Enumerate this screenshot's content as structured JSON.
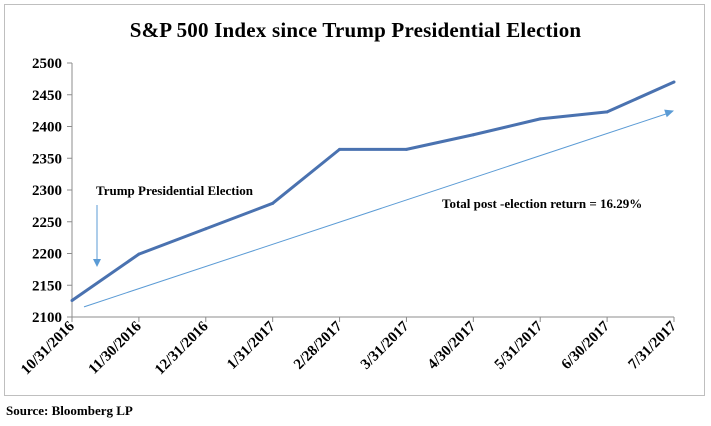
{
  "chart_data": {
    "type": "line",
    "title": "S&P 500 Index since Trump Presidential Election",
    "xlabel": "",
    "ylabel": "",
    "categories": [
      "10/31/2016",
      "11/30/2016",
      "12/31/2016",
      "1/31/2017",
      "2/28/2017",
      "3/31/2017",
      "4/30/2017",
      "5/31/2017",
      "6/30/2017",
      "7/31/2017"
    ],
    "series": [
      {
        "values": [
          2126,
          2199,
          2239,
          2279,
          2364,
          2364,
          2387,
          2412,
          2423,
          2470
        ],
        "color": "#4a72b0"
      }
    ],
    "trend_line": {
      "from": [
        0,
        2116
      ],
      "to": [
        9,
        2425
      ],
      "color": "#5b9bd5"
    },
    "ylim": [
      2100,
      2500
    ],
    "yticks": [
      "2500",
      "2450",
      "2400",
      "2350",
      "2300",
      "2250",
      "2200",
      "2150",
      "2100"
    ],
    "grid": false,
    "legend": "none",
    "annotations": {
      "election_label": "Trump Presidential Election",
      "return_label": "Total post -election return = 16.29%"
    }
  },
  "source": "Source: Bloomberg LP"
}
